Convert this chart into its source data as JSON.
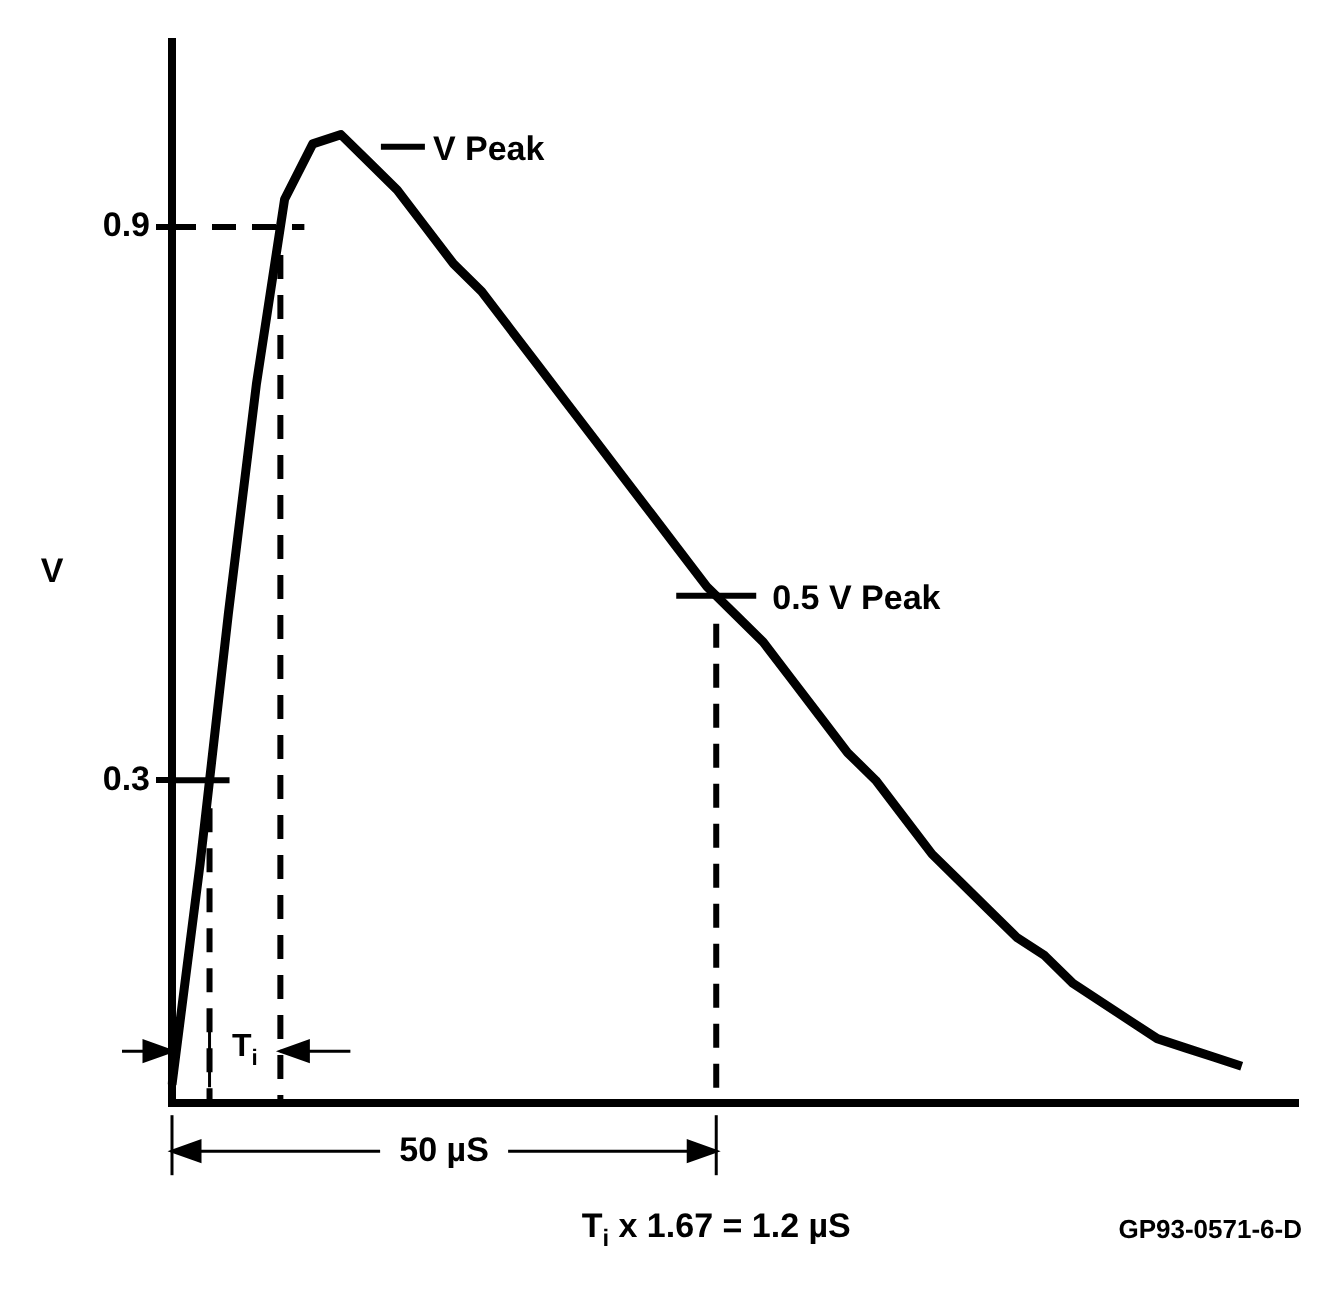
{
  "chart_data": {
    "type": "line",
    "ylabel": "V",
    "categories": [
      null,
      null,
      null,
      null,
      null,
      null,
      null,
      null,
      null,
      null,
      null,
      null,
      null,
      null,
      null,
      null,
      null,
      null,
      null,
      null,
      null,
      null,
      null,
      null,
      null,
      null,
      null,
      null,
      null,
      null,
      null,
      null,
      null,
      null,
      null,
      null,
      null,
      null,
      null,
      null,
      null
    ],
    "series": [
      {
        "color": "#000000",
        "values": [
          -0.03,
          0.21,
          0.48,
          0.73,
          0.93,
          0.99,
          1.0,
          0.97,
          0.94,
          0.9,
          0.86,
          0.83,
          0.79,
          0.75,
          0.71,
          0.67,
          0.63,
          0.59,
          0.55,
          0.51,
          0.48,
          0.45,
          0.41,
          0.37,
          0.33,
          0.3,
          0.26,
          0.22,
          0.19,
          0.16,
          0.13,
          0.11,
          0.08,
          0.06,
          0.04,
          0.02,
          0.01,
          0.0,
          -0.01,
          null,
          null
        ]
      }
    ],
    "ylim": [
      -0.05,
      1.1
    ],
    "yticks": [
      0.3,
      0.9
    ],
    "grid": false,
    "ref_lines": [
      {
        "axis": "y",
        "value": 0.9,
        "line_style": "dashed"
      }
    ],
    "annotations": [
      "V Peak",
      "0.5 V Peak",
      "T$_{i}$",
      "50 µS",
      "T$_{i}$ x 1.67 = 1.2 µS",
      "GP93-0571-6-D"
    ]
  }
}
